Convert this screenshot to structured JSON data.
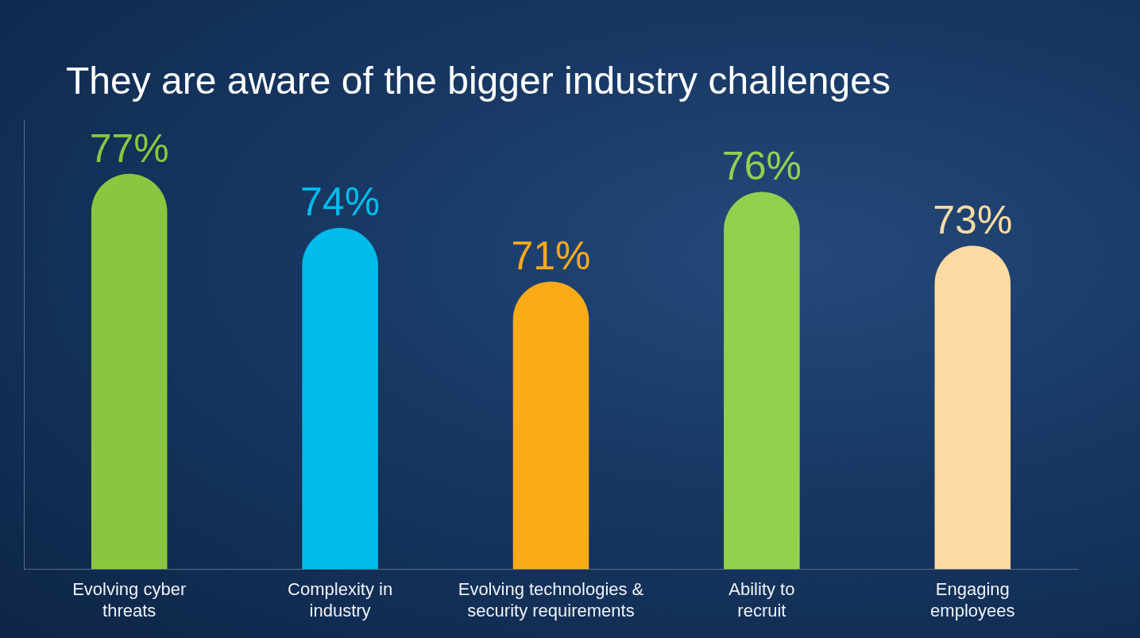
{
  "chart_data": {
    "type": "bar",
    "title": "They are aware of the bigger industry challenges",
    "categories": [
      "Evolving cyber threats",
      "Complexity in industry",
      "Evolving technologies & security requirements",
      "Ability to recruit",
      "Engaging employees"
    ],
    "values": [
      77,
      74,
      71,
      76,
      73
    ],
    "value_labels": [
      "77%",
      "74%",
      "71%",
      "76%",
      "73%"
    ],
    "colors": [
      "#8cc63f",
      "#00bceb",
      "#fbab18",
      "#92d050",
      "#fcdba3"
    ],
    "ylim": [
      55,
      80
    ],
    "data_labels": true,
    "tick_labels": "x",
    "grid": false
  }
}
